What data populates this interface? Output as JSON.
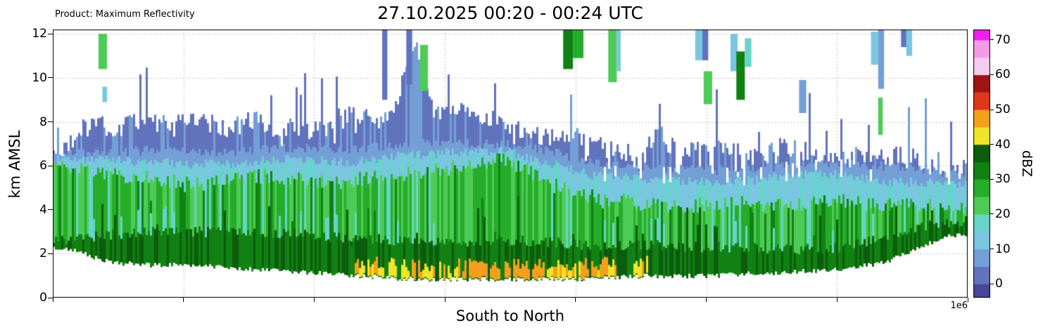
{
  "header": {
    "product_label": "Product: Maximum Reflectivity",
    "title": "27.10.2025 00:20 - 00:24 UTC"
  },
  "chart_data": {
    "type": "heatmap",
    "title": "27.10.2025 00:20 - 00:24 UTC",
    "product": "Product: Maximum Reflectivity",
    "xlabel": "South to North",
    "ylabel": "km AMSL",
    "x_offset_label": "1e6",
    "xlim": [
      0,
      1400000
    ],
    "ylim": [
      0,
      12.2
    ],
    "y_ticks": [
      0,
      2,
      4,
      6,
      8,
      10,
      12
    ],
    "x_ticks": [
      0,
      200000,
      400000,
      600000,
      800000,
      1000000,
      1200000,
      1400000
    ],
    "x_gridlines": [
      200000,
      400000,
      600000,
      800000,
      1000000,
      1200000
    ],
    "grid": true,
    "grid_color": "#b0b0b0",
    "background": "#ffffff",
    "colorbar": {
      "label": "dBZ",
      "ticks": [
        0,
        10,
        20,
        30,
        40,
        50,
        60,
        70
      ],
      "range": [
        -4,
        73
      ],
      "stops": [
        {
          "from": -4,
          "to": 0,
          "color": "#474799"
        },
        {
          "from": 0,
          "to": 5,
          "color": "#6273bd"
        },
        {
          "from": 5,
          "to": 10,
          "color": "#749fd6"
        },
        {
          "from": 10,
          "to": 15,
          "color": "#7ac6e0"
        },
        {
          "from": 15,
          "to": 20,
          "color": "#66d4c9"
        },
        {
          "from": 20,
          "to": 25,
          "color": "#4ecb57"
        },
        {
          "from": 25,
          "to": 30,
          "color": "#25ad29"
        },
        {
          "from": 30,
          "to": 35,
          "color": "#128113"
        },
        {
          "from": 35,
          "to": 40,
          "color": "#0b5c0c"
        },
        {
          "from": 40,
          "to": 45,
          "color": "#f2e32b"
        },
        {
          "from": 45,
          "to": 50,
          "color": "#f4a01d"
        },
        {
          "from": 50,
          "to": 55,
          "color": "#e0361a"
        },
        {
          "from": 55,
          "to": 60,
          "color": "#a01313"
        },
        {
          "from": 60,
          "to": 65,
          "color": "#f2cdee"
        },
        {
          "from": 65,
          "to": 70,
          "color": "#f49ae6"
        },
        {
          "from": 70,
          "to": 73,
          "color": "#ef1fef"
        }
      ]
    },
    "profile_columns": {
      "description": "South-to-north vertical cross-section envelope, one entry per 26923 m slab. Layer tops in km AMSL; dBZ layers stack: darkgreen(30-38) base..dg_top, green(17-30) ..green_top, cyan(10-15) ..cyan_top, lightblue(5-10) ..lb_top, blue(0-5) ..echo_top. hot_dbz = low-level max reflectivity streaks (0 = none).",
      "fields": [
        "base_km",
        "darkgreen_top_km",
        "green_top_km",
        "cyan_top_km",
        "lightblue_top_km",
        "echo_top_km",
        "hot_dbz"
      ],
      "x_step": 26923,
      "values": [
        [
          2.3,
          2.6,
          6.15,
          6.35,
          6.5,
          6.6,
          0
        ],
        [
          2.1,
          2.7,
          5.9,
          6.3,
          6.6,
          7.6,
          0
        ],
        [
          1.8,
          2.8,
          5.8,
          6.3,
          6.6,
          7.9,
          0
        ],
        [
          1.6,
          2.9,
          5.6,
          6.25,
          6.6,
          7.7,
          0
        ],
        [
          1.55,
          2.95,
          5.5,
          6.2,
          6.65,
          7.9,
          0
        ],
        [
          1.5,
          3.0,
          5.45,
          6.2,
          6.7,
          8.1,
          0
        ],
        [
          1.5,
          3.0,
          5.35,
          6.15,
          6.7,
          7.8,
          0
        ],
        [
          1.5,
          3.0,
          5.25,
          6.1,
          6.65,
          8.0,
          0
        ],
        [
          1.45,
          3.0,
          5.2,
          6.05,
          6.6,
          8.1,
          0
        ],
        [
          1.4,
          3.0,
          5.3,
          6.05,
          6.55,
          7.7,
          0
        ],
        [
          1.35,
          3.0,
          5.4,
          6.1,
          6.6,
          7.8,
          0
        ],
        [
          1.3,
          3.0,
          5.5,
          6.2,
          6.7,
          8.1,
          0
        ],
        [
          1.25,
          2.95,
          5.5,
          6.25,
          6.75,
          7.6,
          0
        ],
        [
          1.2,
          2.9,
          5.45,
          6.3,
          6.8,
          7.8,
          0
        ],
        [
          1.15,
          2.85,
          5.35,
          6.3,
          6.8,
          7.5,
          0
        ],
        [
          1.1,
          2.8,
          5.25,
          6.2,
          6.75,
          7.7,
          0
        ],
        [
          1.05,
          2.75,
          5.3,
          6.15,
          6.7,
          8.4,
          0
        ],
        [
          1.0,
          2.7,
          5.4,
          6.2,
          6.75,
          8.2,
          42
        ],
        [
          0.95,
          2.65,
          5.5,
          6.3,
          6.85,
          8.0,
          42
        ],
        [
          0.9,
          2.6,
          5.6,
          6.4,
          6.95,
          8.6,
          43
        ],
        [
          0.85,
          2.55,
          5.7,
          6.5,
          7.0,
          11.8,
          42
        ],
        [
          0.85,
          2.5,
          5.8,
          6.55,
          7.0,
          8.7,
          44
        ],
        [
          0.85,
          2.5,
          5.9,
          6.6,
          7.0,
          8.4,
          43
        ],
        [
          0.85,
          2.55,
          6.0,
          6.6,
          7.0,
          8.7,
          45
        ],
        [
          0.85,
          2.6,
          6.15,
          6.65,
          7.0,
          8.3,
          46
        ],
        [
          0.85,
          2.6,
          6.3,
          6.7,
          7.0,
          7.9,
          46
        ],
        [
          0.85,
          2.6,
          5.95,
          6.5,
          6.9,
          7.6,
          45
        ],
        [
          0.85,
          2.55,
          5.6,
          6.2,
          6.75,
          7.4,
          46
        ],
        [
          0.85,
          2.5,
          5.1,
          6.0,
          6.6,
          7.2,
          44
        ],
        [
          0.85,
          2.45,
          4.8,
          5.8,
          6.4,
          7.5,
          43
        ],
        [
          0.85,
          2.4,
          4.6,
          5.6,
          6.2,
          7.0,
          46
        ],
        [
          0.9,
          2.4,
          4.5,
          5.5,
          6.05,
          6.8,
          42
        ],
        [
          0.95,
          2.4,
          4.4,
          5.45,
          6.0,
          6.6,
          0
        ],
        [
          1.0,
          2.4,
          4.3,
          5.4,
          5.95,
          6.5,
          42
        ],
        [
          1.0,
          2.4,
          4.25,
          5.35,
          5.9,
          7.6,
          0
        ],
        [
          1.0,
          2.35,
          4.2,
          5.3,
          5.85,
          6.8,
          0
        ],
        [
          1.0,
          2.3,
          4.2,
          5.25,
          5.8,
          6.6,
          0
        ],
        [
          1.0,
          2.3,
          4.2,
          5.25,
          5.8,
          7.0,
          0
        ],
        [
          1.05,
          2.3,
          4.3,
          5.3,
          5.85,
          6.8,
          0
        ],
        [
          1.1,
          2.25,
          4.3,
          5.35,
          5.9,
          6.6,
          0
        ],
        [
          1.1,
          2.25,
          4.25,
          5.4,
          5.95,
          6.5,
          0
        ],
        [
          1.15,
          2.2,
          4.2,
          5.5,
          6.0,
          6.9,
          0
        ],
        [
          1.2,
          2.2,
          4.3,
          5.6,
          6.1,
          6.8,
          0
        ],
        [
          1.25,
          2.25,
          4.4,
          5.65,
          6.15,
          6.6,
          0
        ],
        [
          1.3,
          2.3,
          4.4,
          5.6,
          6.15,
          6.5,
          0
        ],
        [
          1.4,
          2.4,
          4.35,
          5.5,
          6.1,
          6.4,
          0
        ],
        [
          1.5,
          2.6,
          4.25,
          5.4,
          6.0,
          6.5,
          0
        ],
        [
          1.7,
          2.8,
          4.2,
          5.3,
          5.95,
          6.6,
          0
        ],
        [
          2.0,
          3.0,
          4.2,
          5.25,
          5.9,
          6.4,
          0
        ],
        [
          2.4,
          3.2,
          4.25,
          5.25,
          5.8,
          6.3,
          0
        ],
        [
          2.7,
          3.4,
          4.3,
          5.3,
          5.7,
          6.2,
          0
        ],
        [
          2.9,
          3.5,
          4.2,
          5.2,
          5.6,
          6.0,
          0
        ]
      ]
    },
    "detached_cells": {
      "description": "Isolated upper-level echo cells [x0_m, x1_m, y0_km, y1_km, dBZ].",
      "fields": [
        "x0",
        "x1",
        "y0_km",
        "y1_km",
        "dbz"
      ],
      "values": [
        [
          70000,
          83000,
          10.4,
          12.0,
          22
        ],
        [
          76000,
          83000,
          8.9,
          9.6,
          13
        ],
        [
          504000,
          512000,
          9.0,
          12.2,
          3
        ],
        [
          541000,
          550000,
          9.7,
          12.2,
          3
        ],
        [
          562000,
          574000,
          9.4,
          11.5,
          22
        ],
        [
          781000,
          796000,
          10.4,
          12.2,
          33
        ],
        [
          796000,
          812000,
          10.9,
          12.2,
          27
        ],
        [
          850000,
          863000,
          9.8,
          12.2,
          22
        ],
        [
          863000,
          869000,
          10.3,
          12.2,
          12
        ],
        [
          983000,
          994000,
          10.8,
          12.2,
          11
        ],
        [
          994000,
          1003000,
          10.8,
          12.2,
          4
        ],
        [
          996000,
          1009000,
          8.8,
          10.3,
          24
        ],
        [
          1037000,
          1048000,
          10.3,
          12.0,
          13
        ],
        [
          1046000,
          1059000,
          9.0,
          11.2,
          33
        ],
        [
          1059000,
          1069000,
          10.5,
          11.8,
          16
        ],
        [
          1142000,
          1153000,
          8.4,
          9.9,
          5
        ],
        [
          1252000,
          1263000,
          10.6,
          12.1,
          14
        ],
        [
          1263000,
          1272000,
          9.5,
          12.2,
          5
        ],
        [
          1263000,
          1270000,
          7.4,
          9.1,
          24
        ],
        [
          1298000,
          1308000,
          11.4,
          12.2,
          4
        ],
        [
          1306000,
          1315000,
          11.0,
          12.2,
          13
        ]
      ]
    }
  }
}
